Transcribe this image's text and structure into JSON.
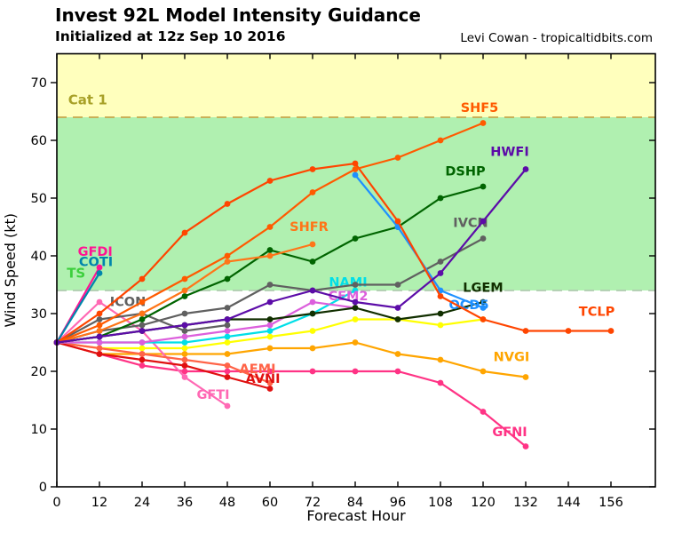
{
  "header": {
    "title": "Invest 92L Model Intensity Guidance",
    "subtitle": "Initialized at 12z Sep 10 2016",
    "credit": "Levi Cowan - tropicaltidbits.com"
  },
  "chart_data": {
    "type": "line",
    "title": "Invest 92L Model Intensity Guidance",
    "subtitle": "Initialized at 12z Sep 10 2016",
    "xlabel": "Forecast Hour",
    "ylabel": "Wind Speed (kt)",
    "xlim": [
      0,
      168.5
    ],
    "ylim": [
      0,
      75
    ],
    "grid": false,
    "x_ticks": [
      0,
      12,
      24,
      36,
      48,
      60,
      72,
      84,
      96,
      108,
      120,
      132,
      144,
      156
    ],
    "y_ticks": [
      0,
      10,
      20,
      30,
      40,
      50,
      60,
      70
    ],
    "bands": [
      {
        "name": "Cat 1",
        "from": 64,
        "to": 75,
        "color": "#ffffbd",
        "label_color": "#a8a128",
        "label_pos": [
          3.2,
          66.2
        ]
      },
      {
        "name": "TS",
        "from": 34,
        "to": 64,
        "color": "#b0f0b0",
        "label_color": "#3dcf3d",
        "label_pos": [
          2.8,
          36.2
        ]
      }
    ],
    "threshold_lines": [
      {
        "value": 64,
        "color": "#c8a84b"
      },
      {
        "value": 34,
        "color": "#b0ccb0"
      }
    ],
    "series": [
      {
        "name": "unlabeled-yellow",
        "label": "",
        "color": "#ffff00",
        "label_pos": [
          0,
          0
        ],
        "points": [
          [
            0,
            25
          ],
          [
            12,
            24
          ],
          [
            24,
            24
          ],
          [
            36,
            24
          ],
          [
            48,
            25
          ],
          [
            60,
            26
          ],
          [
            72,
            27
          ],
          [
            84,
            29
          ],
          [
            96,
            29
          ],
          [
            108,
            28
          ],
          [
            120,
            29
          ]
        ]
      },
      {
        "name": "NVGI",
        "label": "NVGI",
        "color": "#ffa500",
        "label_pos": [
          128,
          21.8
        ],
        "points": [
          [
            0,
            25
          ],
          [
            12,
            23
          ],
          [
            24,
            23
          ],
          [
            36,
            23
          ],
          [
            48,
            23
          ],
          [
            60,
            24
          ],
          [
            72,
            24
          ],
          [
            84,
            25
          ],
          [
            96,
            23
          ],
          [
            108,
            22
          ],
          [
            120,
            20
          ],
          [
            132,
            19
          ]
        ]
      },
      {
        "name": "GFNI",
        "label": "GFNI",
        "color": "#ff3385",
        "label_pos": [
          127.5,
          8.8
        ],
        "points": [
          [
            0,
            25
          ],
          [
            12,
            23
          ],
          [
            24,
            21
          ],
          [
            36,
            20
          ],
          [
            48,
            20
          ],
          [
            60,
            20
          ],
          [
            72,
            20
          ],
          [
            84,
            20
          ],
          [
            96,
            20
          ],
          [
            108,
            18
          ],
          [
            120,
            13
          ],
          [
            132,
            7
          ]
        ]
      },
      {
        "name": "GFTI",
        "label": "GFTI",
        "color": "#ff69b4",
        "label_pos": [
          44,
          15.2
        ],
        "points": [
          [
            0,
            25
          ],
          [
            12,
            32
          ],
          [
            24,
            27
          ],
          [
            36,
            19
          ],
          [
            48,
            14
          ]
        ]
      },
      {
        "name": "AEMI",
        "label": "AEMI",
        "color": "#ff6347",
        "label_pos": [
          56.5,
          19.7
        ],
        "points": [
          [
            0,
            25
          ],
          [
            12,
            24
          ],
          [
            24,
            23
          ],
          [
            36,
            22
          ],
          [
            48,
            21
          ],
          [
            60,
            18
          ]
        ]
      },
      {
        "name": "AVNI",
        "label": "AVNI",
        "color": "#e01010",
        "label_pos": [
          58,
          18.0
        ],
        "points": [
          [
            0,
            25
          ],
          [
            12,
            23
          ],
          [
            24,
            22
          ],
          [
            36,
            21
          ],
          [
            48,
            19
          ],
          [
            60,
            17
          ]
        ]
      },
      {
        "name": "NAMI",
        "label": "NAMI",
        "color": "#00dfe8",
        "label_pos": [
          82,
          34.7
        ],
        "points": [
          [
            0,
            25
          ],
          [
            12,
            25
          ],
          [
            24,
            25
          ],
          [
            36,
            25
          ],
          [
            48,
            26
          ],
          [
            60,
            27
          ],
          [
            72,
            30
          ],
          [
            84,
            34
          ]
        ]
      },
      {
        "name": "CEM2",
        "label": "CEM2",
        "color": "#dc5fdc",
        "label_pos": [
          82,
          32.3
        ],
        "points": [
          [
            0,
            25
          ],
          [
            12,
            25
          ],
          [
            24,
            25
          ],
          [
            36,
            26
          ],
          [
            48,
            27
          ],
          [
            60,
            28
          ],
          [
            72,
            32
          ],
          [
            84,
            31
          ]
        ]
      },
      {
        "name": "ICON",
        "label": "ICON",
        "color": "#606060",
        "label_pos": [
          20,
          31.3
        ],
        "points": [
          [
            0,
            25
          ],
          [
            12,
            29
          ],
          [
            24,
            30
          ],
          [
            36,
            27
          ],
          [
            48,
            28
          ]
        ]
      },
      {
        "name": "IVCN",
        "label": "IVCN",
        "color": "#606060",
        "label_pos": [
          116.5,
          45.0
        ],
        "points": [
          [
            0,
            25
          ],
          [
            12,
            27
          ],
          [
            24,
            28
          ],
          [
            36,
            30
          ],
          [
            48,
            31
          ],
          [
            60,
            35
          ],
          [
            72,
            34
          ],
          [
            84,
            35
          ],
          [
            96,
            35
          ],
          [
            108,
            39
          ],
          [
            120,
            43
          ]
        ]
      },
      {
        "name": "LGEM",
        "label": "LGEM",
        "color": "#112f00",
        "label_pos": [
          120,
          33.8
        ],
        "points": [
          [
            0,
            25
          ],
          [
            12,
            26
          ],
          [
            24,
            27
          ],
          [
            36,
            28
          ],
          [
            48,
            29
          ],
          [
            60,
            29
          ],
          [
            72,
            30
          ],
          [
            84,
            31
          ],
          [
            96,
            29
          ],
          [
            108,
            30
          ],
          [
            120,
            32
          ]
        ]
      },
      {
        "name": "DSHP",
        "label": "DSHP",
        "color": "#006400",
        "label_pos": [
          115,
          53.9
        ],
        "points": [
          [
            0,
            25
          ],
          [
            12,
            26
          ],
          [
            24,
            29
          ],
          [
            36,
            33
          ],
          [
            48,
            36
          ],
          [
            60,
            41
          ],
          [
            72,
            39
          ],
          [
            84,
            43
          ],
          [
            96,
            45
          ],
          [
            108,
            50
          ],
          [
            120,
            52
          ]
        ]
      },
      {
        "name": "SHFR",
        "label": "SHFR",
        "color": "#ff7518",
        "label_pos": [
          71,
          44.3
        ],
        "points": [
          [
            0,
            25
          ],
          [
            12,
            27
          ],
          [
            24,
            30
          ],
          [
            36,
            34
          ],
          [
            48,
            39
          ],
          [
            60,
            40
          ],
          [
            72,
            42
          ]
        ]
      },
      {
        "name": "GFDI",
        "label": "GFDI",
        "color": "#ff1493",
        "label_pos": [
          10.8,
          40.0
        ],
        "points": [
          [
            0,
            25
          ],
          [
            12,
            38
          ]
        ]
      },
      {
        "name": "COTI",
        "label": "COTI",
        "color": "#0086ac",
        "label_pos": [
          11,
          38.2
        ],
        "points": [
          [
            0,
            25
          ],
          [
            12,
            37
          ]
        ]
      },
      {
        "name": "OCD5",
        "label": "OCD5",
        "color": "#1e90ff",
        "label_pos": [
          116,
          30.8
        ],
        "points": [
          [
            84,
            54
          ],
          [
            96,
            45
          ],
          [
            108,
            34
          ],
          [
            120,
            31
          ]
        ]
      },
      {
        "name": "TCLP",
        "label": "TCLP",
        "color": "#ff4500",
        "label_pos": [
          152,
          29.6
        ],
        "points": [
          [
            0,
            25
          ],
          [
            12,
            30
          ],
          [
            24,
            36
          ],
          [
            36,
            44
          ],
          [
            48,
            49
          ],
          [
            60,
            53
          ],
          [
            72,
            55
          ],
          [
            84,
            56
          ],
          [
            96,
            46
          ],
          [
            108,
            33
          ],
          [
            120,
            29
          ],
          [
            132,
            27
          ],
          [
            144,
            27
          ],
          [
            156,
            27
          ]
        ]
      },
      {
        "name": "SHF5",
        "label": "SHF5",
        "color": "#ff5a00",
        "label_pos": [
          119,
          64.9
        ],
        "points": [
          [
            0,
            25
          ],
          [
            12,
            28
          ],
          [
            24,
            32
          ],
          [
            36,
            36
          ],
          [
            48,
            40
          ],
          [
            60,
            45
          ],
          [
            72,
            51
          ],
          [
            84,
            55
          ],
          [
            96,
            57
          ],
          [
            108,
            60
          ],
          [
            120,
            63
          ]
        ]
      },
      {
        "name": "HWFI",
        "label": "HWFI",
        "color": "#5c0ca8",
        "label_pos": [
          127.5,
          57.3
        ],
        "points": [
          [
            0,
            25
          ],
          [
            12,
            26
          ],
          [
            24,
            27
          ],
          [
            36,
            28
          ],
          [
            48,
            29
          ],
          [
            60,
            32
          ],
          [
            72,
            34
          ],
          [
            84,
            32
          ],
          [
            96,
            31
          ],
          [
            108,
            37
          ],
          [
            120,
            46
          ],
          [
            132,
            55
          ]
        ]
      }
    ]
  }
}
